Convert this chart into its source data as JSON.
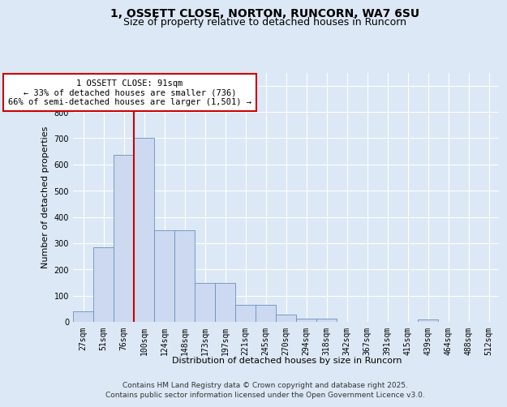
{
  "title_line1": "1, OSSETT CLOSE, NORTON, RUNCORN, WA7 6SU",
  "title_line2": "Size of property relative to detached houses in Runcorn",
  "xlabel": "Distribution of detached houses by size in Runcorn",
  "ylabel": "Number of detached properties",
  "footer_line1": "Contains HM Land Registry data © Crown copyright and database right 2025.",
  "footer_line2": "Contains public sector information licensed under the Open Government Licence v3.0.",
  "categories": [
    "27sqm",
    "51sqm",
    "76sqm",
    "100sqm",
    "124sqm",
    "148sqm",
    "173sqm",
    "197sqm",
    "221sqm",
    "245sqm",
    "270sqm",
    "294sqm",
    "318sqm",
    "342sqm",
    "367sqm",
    "391sqm",
    "415sqm",
    "439sqm",
    "464sqm",
    "488sqm",
    "512sqm"
  ],
  "values": [
    40,
    285,
    635,
    700,
    350,
    350,
    148,
    148,
    65,
    65,
    28,
    13,
    13,
    0,
    0,
    0,
    0,
    8,
    0,
    0,
    0
  ],
  "bar_color": "#ccd9f0",
  "bar_edge_color": "#6a8fc0",
  "vline_x": 2.5,
  "ylim": [
    0,
    950
  ],
  "yticks": [
    0,
    100,
    200,
    300,
    400,
    500,
    600,
    700,
    800,
    900
  ],
  "bg_color": "#dce8f5",
  "grid_color": "#ffffff",
  "annotation_text_line1": "1 OSSETT CLOSE: 91sqm",
  "annotation_text_line2": "← 33% of detached houses are smaller (736)",
  "annotation_text_line3": "66% of semi-detached houses are larger (1,501) →",
  "vline_color": "#cc0000",
  "ann_box_fc": "#ffffff",
  "ann_box_ec": "#cc0000",
  "title_fontsize": 10,
  "subtitle_fontsize": 9,
  "ylabel_fontsize": 8,
  "xlabel_fontsize": 8,
  "tick_fontsize": 7,
  "ann_fontsize": 7.5,
  "footer_fontsize": 6.5
}
